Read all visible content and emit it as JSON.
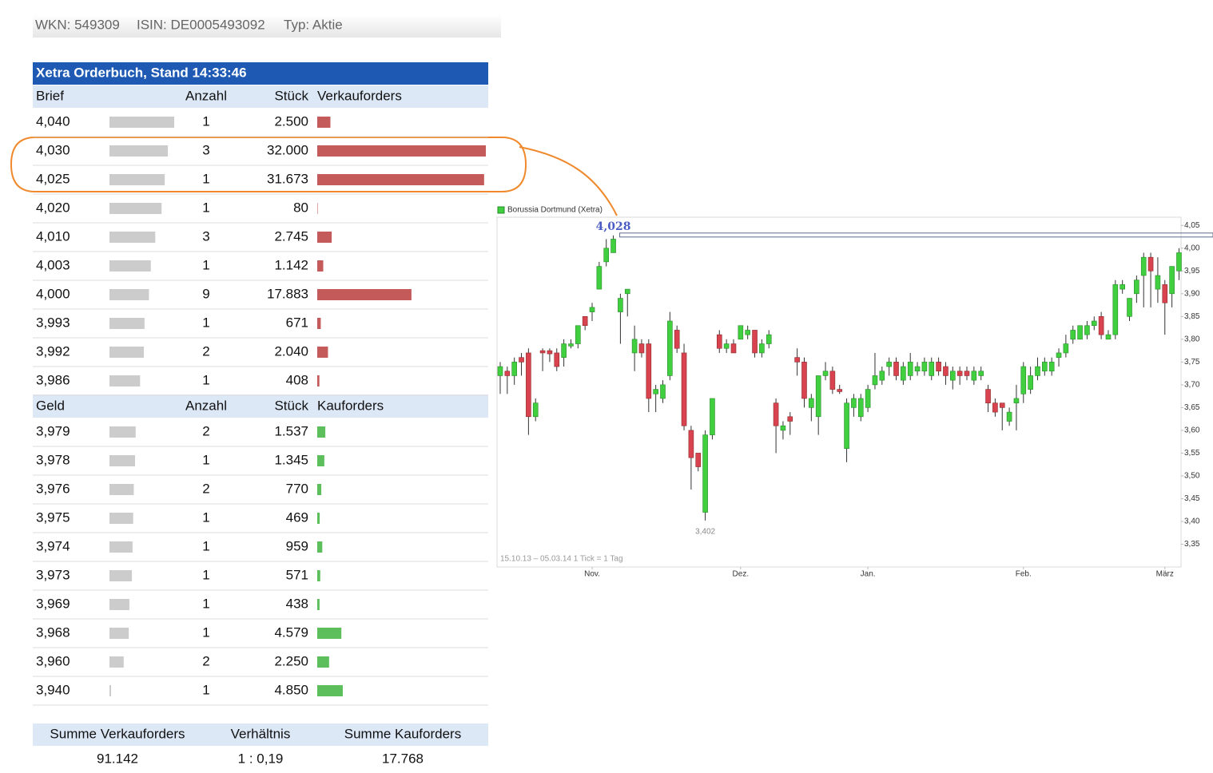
{
  "header": {
    "items": [
      "WKN: 549309",
      "ISIN: DE0005493092",
      "Typ: Aktie"
    ]
  },
  "orderbook": {
    "title": "Xetra Orderbuch, Stand 14:33:46",
    "ask_columns": [
      "Brief",
      "Anzahl",
      "Stück",
      "Verkauforders"
    ],
    "asks": [
      {
        "price": {
          "value": 4.04,
          "label": "4,040"
        },
        "count": 1,
        "qty": {
          "value": 2500,
          "label": "2.500"
        }
      },
      {
        "price": {
          "value": 4.03,
          "label": "4,030"
        },
        "count": 3,
        "qty": {
          "value": 32000,
          "label": "32.000"
        }
      },
      {
        "price": {
          "value": 4.025,
          "label": "4,025"
        },
        "count": 1,
        "qty": {
          "value": 31673,
          "label": "31.673"
        }
      },
      {
        "price": {
          "value": 4.02,
          "label": "4,020"
        },
        "count": 1,
        "qty": {
          "value": 80,
          "label": "80"
        }
      },
      {
        "price": {
          "value": 4.01,
          "label": "4,010"
        },
        "count": 3,
        "qty": {
          "value": 2745,
          "label": "2.745"
        }
      },
      {
        "price": {
          "value": 4.003,
          "label": "4,003"
        },
        "count": 1,
        "qty": {
          "value": 1142,
          "label": "1.142"
        }
      },
      {
        "price": {
          "value": 4.0,
          "label": "4,000"
        },
        "count": 9,
        "qty": {
          "value": 17883,
          "label": "17.883"
        }
      },
      {
        "price": {
          "value": 3.993,
          "label": "3,993"
        },
        "count": 1,
        "qty": {
          "value": 671,
          "label": "671"
        }
      },
      {
        "price": {
          "value": 3.992,
          "label": "3,992"
        },
        "count": 2,
        "qty": {
          "value": 2040,
          "label": "2.040"
        }
      },
      {
        "price": {
          "value": 3.986,
          "label": "3,986"
        },
        "count": 1,
        "qty": {
          "value": 408,
          "label": "408"
        }
      }
    ],
    "bid_columns": [
      "Geld",
      "Anzahl",
      "Stück",
      "Kauforders"
    ],
    "bids": [
      {
        "price": {
          "value": 3.979,
          "label": "3,979"
        },
        "count": 2,
        "qty": {
          "value": 1537,
          "label": "1.537"
        }
      },
      {
        "price": {
          "value": 3.978,
          "label": "3,978"
        },
        "count": 1,
        "qty": {
          "value": 1345,
          "label": "1.345"
        }
      },
      {
        "price": {
          "value": 3.976,
          "label": "3,976"
        },
        "count": 2,
        "qty": {
          "value": 770,
          "label": "770"
        }
      },
      {
        "price": {
          "value": 3.975,
          "label": "3,975"
        },
        "count": 1,
        "qty": {
          "value": 469,
          "label": "469"
        }
      },
      {
        "price": {
          "value": 3.974,
          "label": "3,974"
        },
        "count": 1,
        "qty": {
          "value": 959,
          "label": "959"
        }
      },
      {
        "price": {
          "value": 3.973,
          "label": "3,973"
        },
        "count": 1,
        "qty": {
          "value": 571,
          "label": "571"
        }
      },
      {
        "price": {
          "value": 3.969,
          "label": "3,969"
        },
        "count": 1,
        "qty": {
          "value": 438,
          "label": "438"
        }
      },
      {
        "price": {
          "value": 3.968,
          "label": "3,968"
        },
        "count": 1,
        "qty": {
          "value": 4579,
          "label": "4.579"
        }
      },
      {
        "price": {
          "value": 3.96,
          "label": "3,960"
        },
        "count": 2,
        "qty": {
          "value": 2250,
          "label": "2.250"
        }
      },
      {
        "price": {
          "value": 3.94,
          "label": "3,940"
        },
        "count": 1,
        "qty": {
          "value": 4850,
          "label": "4.850"
        }
      }
    ],
    "ask_color": "#c55a5a",
    "bid_color": "#5cbf5c",
    "depth_color": "#cccccc"
  },
  "summary": {
    "columns": [
      "Summe Verkauforders",
      "Verhältnis",
      "Summe Kauforders"
    ],
    "values": [
      "91.142",
      "1 : 0,19",
      "17.768"
    ]
  },
  "chart_data": {
    "type": "candlestick",
    "legend": "Borussia Dortmund (Xetra)",
    "footnote": "15.10.13 – 05.03.14   1 Tick = 1 Tag",
    "up_color": "#3fcf3f",
    "down_color": "#d9434f",
    "open": [
      3.72,
      3.73,
      3.72,
      3.76,
      3.77,
      3.63,
      3.775,
      3.775,
      3.77,
      3.76,
      3.785,
      3.79,
      3.85,
      3.86,
      3.91,
      3.97,
      3.99,
      3.86,
      3.9,
      3.77,
      3.79,
      3.79,
      3.68,
      3.67,
      3.72,
      3.82,
      3.77,
      3.6,
      3.55,
      3.42,
      3.59,
      3.81,
      3.78,
      3.79,
      3.8,
      3.81,
      3.82,
      3.77,
      3.79,
      3.66,
      3.6,
      3.63,
      3.76,
      3.75,
      3.65,
      3.63,
      3.72,
      3.73,
      3.69,
      3.56,
      3.65,
      3.63,
      3.65,
      3.7,
      3.71,
      3.74,
      3.75,
      3.71,
      3.72,
      3.73,
      3.73,
      3.72,
      3.75,
      3.74,
      3.71,
      3.73,
      3.73,
      3.71,
      3.72,
      3.69,
      3.66,
      3.66,
      3.62,
      3.66,
      3.68,
      3.69,
      3.72,
      3.73,
      3.73,
      3.76,
      3.77,
      3.8,
      3.8,
      3.81,
      3.83,
      3.85,
      3.8,
      3.81,
      3.91,
      3.85,
      3.9,
      3.94,
      3.98,
      3.91,
      3.92,
      3.9,
      3.95
    ],
    "high": [
      3.75,
      3.74,
      3.76,
      3.77,
      3.78,
      3.67,
      3.78,
      3.78,
      3.78,
      3.8,
      3.8,
      3.83,
      3.85,
      3.88,
      3.97,
      4.02,
      4.028,
      3.9,
      3.91,
      3.83,
      3.8,
      3.8,
      3.7,
      3.71,
      3.86,
      3.83,
      3.79,
      3.61,
      3.55,
      3.6,
      3.67,
      3.82,
      3.8,
      3.8,
      3.83,
      3.83,
      3.82,
      3.8,
      3.82,
      3.67,
      3.62,
      3.64,
      3.78,
      3.76,
      3.68,
      3.72,
      3.75,
      3.74,
      3.7,
      3.67,
      3.68,
      3.68,
      3.7,
      3.77,
      3.74,
      3.76,
      3.76,
      3.75,
      3.77,
      3.75,
      3.76,
      3.76,
      3.76,
      3.75,
      3.74,
      3.74,
      3.74,
      3.74,
      3.74,
      3.7,
      3.67,
      3.66,
      3.65,
      3.7,
      3.75,
      3.74,
      3.76,
      3.76,
      3.76,
      3.78,
      3.81,
      3.83,
      3.83,
      3.84,
      3.85,
      3.86,
      3.82,
      3.93,
      3.93,
      3.89,
      3.94,
      3.99,
      3.99,
      3.98,
      3.93,
      3.96,
      4.0
    ],
    "low": [
      3.68,
      3.68,
      3.7,
      3.72,
      3.59,
      3.62,
      3.73,
      3.75,
      3.73,
      3.74,
      3.78,
      3.78,
      3.82,
      3.84,
      3.91,
      3.96,
      3.99,
      3.79,
      3.85,
      3.73,
      3.76,
      3.64,
      3.64,
      3.66,
      3.71,
      3.77,
      3.6,
      3.47,
      3.51,
      3.402,
      3.58,
      3.77,
      3.77,
      3.77,
      3.8,
      3.8,
      3.76,
      3.76,
      3.78,
      3.55,
      3.58,
      3.59,
      3.72,
      3.65,
      3.62,
      3.59,
      3.71,
      3.68,
      3.68,
      3.53,
      3.63,
      3.62,
      3.64,
      3.69,
      3.7,
      3.72,
      3.71,
      3.7,
      3.71,
      3.72,
      3.72,
      3.71,
      3.72,
      3.7,
      3.69,
      3.7,
      3.71,
      3.7,
      3.71,
      3.64,
      3.63,
      3.6,
      3.61,
      3.6,
      3.66,
      3.68,
      3.71,
      3.72,
      3.72,
      3.74,
      3.76,
      3.79,
      3.8,
      3.8,
      3.82,
      3.8,
      3.8,
      3.8,
      3.9,
      3.84,
      3.88,
      3.87,
      3.87,
      3.88,
      3.81,
      3.87,
      3.93
    ],
    "close": [
      3.74,
      3.72,
      3.75,
      3.75,
      3.63,
      3.66,
      3.77,
      3.768,
      3.74,
      3.79,
      3.79,
      3.83,
      3.83,
      3.87,
      3.96,
      4.0,
      4.02,
      3.89,
      3.91,
      3.8,
      3.77,
      3.67,
      3.69,
      3.7,
      3.84,
      3.78,
      3.61,
      3.54,
      3.52,
      3.59,
      3.67,
      3.78,
      3.79,
      3.77,
      3.83,
      3.82,
      3.77,
      3.79,
      3.81,
      3.61,
      3.61,
      3.62,
      3.75,
      3.67,
      3.67,
      3.72,
      3.73,
      3.69,
      3.685,
      3.66,
      3.67,
      3.67,
      3.69,
      3.72,
      3.73,
      3.75,
      3.72,
      3.74,
      3.75,
      3.74,
      3.75,
      3.75,
      3.73,
      3.72,
      3.73,
      3.72,
      3.72,
      3.73,
      3.73,
      3.66,
      3.64,
      3.65,
      3.64,
      3.67,
      3.74,
      3.72,
      3.74,
      3.75,
      3.75,
      3.77,
      3.79,
      3.82,
      3.83,
      3.83,
      3.84,
      3.81,
      3.81,
      3.92,
      3.92,
      3.89,
      3.93,
      3.98,
      3.95,
      3.94,
      3.88,
      3.96,
      3.99
    ],
    "xlim": [
      -0.45,
      96.4
    ],
    "xticks": [
      {
        "value": 13,
        "label": "Nov."
      },
      {
        "value": 34,
        "label": "Dez."
      },
      {
        "value": 52,
        "label": "Jan."
      },
      {
        "value": 74,
        "label": "Feb."
      },
      {
        "value": 94,
        "label": "März"
      }
    ],
    "ylim": [
      3.3,
      4.068
    ],
    "yticks": [
      {
        "value": 3.35,
        "label": "3,35"
      },
      {
        "value": 3.4,
        "label": "3,40"
      },
      {
        "value": 3.45,
        "label": "3,45"
      },
      {
        "value": 3.5,
        "label": "3,50"
      },
      {
        "value": 3.55,
        "label": "3,55"
      },
      {
        "value": 3.6,
        "label": "3,60"
      },
      {
        "value": 3.65,
        "label": "3,65"
      },
      {
        "value": 3.7,
        "label": "3,70"
      },
      {
        "value": 3.75,
        "label": "3,75"
      },
      {
        "value": 3.8,
        "label": "3,80"
      },
      {
        "value": 3.85,
        "label": "3,85"
      },
      {
        "value": 3.9,
        "label": "3,90"
      },
      {
        "value": 3.95,
        "label": "3,95"
      },
      {
        "value": 4.0,
        "label": "4,00"
      },
      {
        "value": 4.05,
        "label": "4,05"
      }
    ],
    "annotations": [
      {
        "label": "4,028",
        "value": 4.028,
        "x": 16
      },
      {
        "label": "3,402",
        "value": 3.402,
        "x": 29
      }
    ]
  }
}
